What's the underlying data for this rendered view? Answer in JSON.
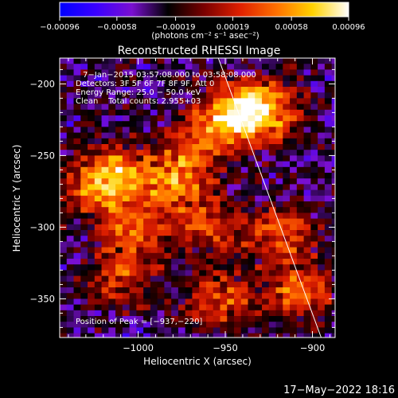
{
  "chart_data": {
    "type": "heatmap",
    "title": "Reconstructed RHESSI Image",
    "xlabel": "Heliocentric X (arcsec)",
    "ylabel": "Heliocentric Y (arcsec)",
    "xlim": [
      -1045,
      -887
    ],
    "ylim": [
      -377,
      -182
    ],
    "xticks": [
      -1000,
      -950,
      -900
    ],
    "xtick_labels": [
      "−1000",
      "−950",
      "−900"
    ],
    "yticks": [
      -200,
      -250,
      -300,
      -350
    ],
    "ytick_labels": [
      "−200",
      "−250",
      "−300",
      "−350"
    ],
    "colorbar": {
      "min": -0.00096,
      "max": 0.00096,
      "ticks": [
        -0.00096,
        -0.00058,
        -0.00019,
        0.00019,
        0.00058,
        0.00096
      ],
      "tick_labels": [
        "−0.00096",
        "−0.00058",
        "−0.00019",
        "0.00019",
        "0.00058",
        "0.00096"
      ],
      "unit_label": "(photons cm⁻² s⁻¹ asec⁻²)",
      "colormap": [
        "#0000ff",
        "#3a00ff",
        "#7a0fd0",
        "#000000",
        "#7a0000",
        "#e02000",
        "#ff7000",
        "#ffd200",
        "#ffffff"
      ]
    },
    "annotations": [
      "7−Jan−2015 03:57:08.000 to 03:58:08.000",
      "Detectors: 3F 5F 6F 7F 8F 9F, Att 0",
      "Energy Range: 25.0 − 50.0 keV",
      "Clean    Total counts: 2.955+03"
    ],
    "peak_label": "Position of Peak = [−937,−220]",
    "peak": [
      -937,
      -220
    ],
    "limb_line": [
      [
        -954,
        -182
      ],
      [
        -895,
        -377
      ]
    ],
    "sources": [
      {
        "x": -945,
        "y": -222,
        "strength": 1.0
      },
      {
        "x": -925,
        "y": -218,
        "strength": 0.75
      },
      {
        "x": -1012,
        "y": -262,
        "strength": 0.7
      },
      {
        "x": -978,
        "y": -268,
        "strength": 0.65
      },
      {
        "x": -1000,
        "y": -300,
        "strength": 0.6
      },
      {
        "x": -958,
        "y": -300,
        "strength": 0.55
      },
      {
        "x": -918,
        "y": -304,
        "strength": 0.6
      },
      {
        "x": -908,
        "y": -345,
        "strength": 0.65
      },
      {
        "x": -955,
        "y": -350,
        "strength": 0.6
      },
      {
        "x": -1010,
        "y": -335,
        "strength": 0.55
      },
      {
        "x": -1025,
        "y": -275,
        "strength": 0.5
      },
      {
        "x": -965,
        "y": -243,
        "strength": 0.45
      }
    ],
    "colors": {
      "background": "#000000",
      "foreground": "#ffffff"
    }
  },
  "footer": {
    "timestamp": "17−May−2022 18:16"
  }
}
